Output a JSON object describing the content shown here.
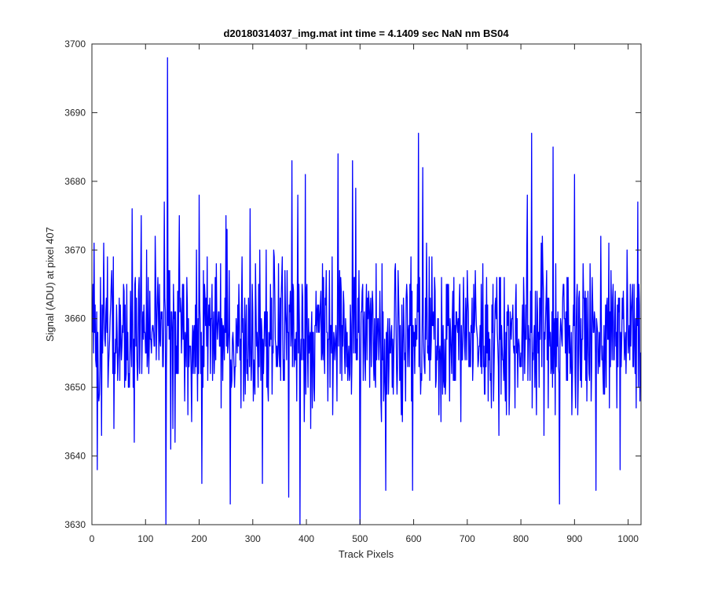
{
  "chart_data": {
    "type": "line",
    "title": "d20180314037_img.mat int time = 4.1409 sec  NaN nm BS04",
    "xlabel": "Track Pixels",
    "ylabel": "Signal (ADU) at pixel 407",
    "xlim": [
      0,
      1024
    ],
    "ylim": [
      3630,
      3700
    ],
    "xticks": [
      0,
      100,
      200,
      300,
      400,
      500,
      600,
      700,
      800,
      900,
      1000
    ],
    "yticks": [
      3630,
      3640,
      3650,
      3660,
      3670,
      3680,
      3690,
      3700
    ],
    "grid": false,
    "box": true,
    "series": [
      {
        "color": "#0000ff",
        "x_start": 1,
        "x_step": 1,
        "point_count": 1024,
        "mean": 3657.5,
        "noise_std": 6.5,
        "notable_points": [
          {
            "x": 4,
            "y": 3671
          },
          {
            "x": 10,
            "y": 3638
          },
          {
            "x": 40,
            "y": 3669
          },
          {
            "x": 75,
            "y": 3676
          },
          {
            "x": 92,
            "y": 3675
          },
          {
            "x": 118,
            "y": 3672
          },
          {
            "x": 135,
            "y": 3677
          },
          {
            "x": 138,
            "y": 3630
          },
          {
            "x": 141,
            "y": 3698
          },
          {
            "x": 147,
            "y": 3641
          },
          {
            "x": 155,
            "y": 3642
          },
          {
            "x": 163,
            "y": 3675
          },
          {
            "x": 200,
            "y": 3678
          },
          {
            "x": 205,
            "y": 3636
          },
          {
            "x": 232,
            "y": 3668
          },
          {
            "x": 250,
            "y": 3675
          },
          {
            "x": 258,
            "y": 3633
          },
          {
            "x": 280,
            "y": 3669
          },
          {
            "x": 295,
            "y": 3676
          },
          {
            "x": 318,
            "y": 3636
          },
          {
            "x": 340,
            "y": 3669
          },
          {
            "x": 355,
            "y": 3669
          },
          {
            "x": 367,
            "y": 3634
          },
          {
            "x": 373,
            "y": 3683
          },
          {
            "x": 384,
            "y": 3678
          },
          {
            "x": 388,
            "y": 3630
          },
          {
            "x": 398,
            "y": 3681
          },
          {
            "x": 430,
            "y": 3668
          },
          {
            "x": 459,
            "y": 3684
          },
          {
            "x": 486,
            "y": 3683
          },
          {
            "x": 492,
            "y": 3679
          },
          {
            "x": 500,
            "y": 3630
          },
          {
            "x": 530,
            "y": 3668
          },
          {
            "x": 548,
            "y": 3635
          },
          {
            "x": 565,
            "y": 3667
          },
          {
            "x": 598,
            "y": 3635
          },
          {
            "x": 609,
            "y": 3687
          },
          {
            "x": 617,
            "y": 3682
          },
          {
            "x": 640,
            "y": 3664
          },
          {
            "x": 700,
            "y": 3667
          },
          {
            "x": 715,
            "y": 3667
          },
          {
            "x": 780,
            "y": 3661
          },
          {
            "x": 812,
            "y": 3678
          },
          {
            "x": 820,
            "y": 3687
          },
          {
            "x": 840,
            "y": 3672
          },
          {
            "x": 860,
            "y": 3685
          },
          {
            "x": 872,
            "y": 3633
          },
          {
            "x": 900,
            "y": 3681
          },
          {
            "x": 920,
            "y": 3664
          },
          {
            "x": 940,
            "y": 3635
          },
          {
            "x": 960,
            "y": 3662
          },
          {
            "x": 975,
            "y": 3660
          },
          {
            "x": 985,
            "y": 3638
          },
          {
            "x": 1018,
            "y": 3677
          },
          {
            "x": 1022,
            "y": 3648
          }
        ]
      }
    ]
  }
}
